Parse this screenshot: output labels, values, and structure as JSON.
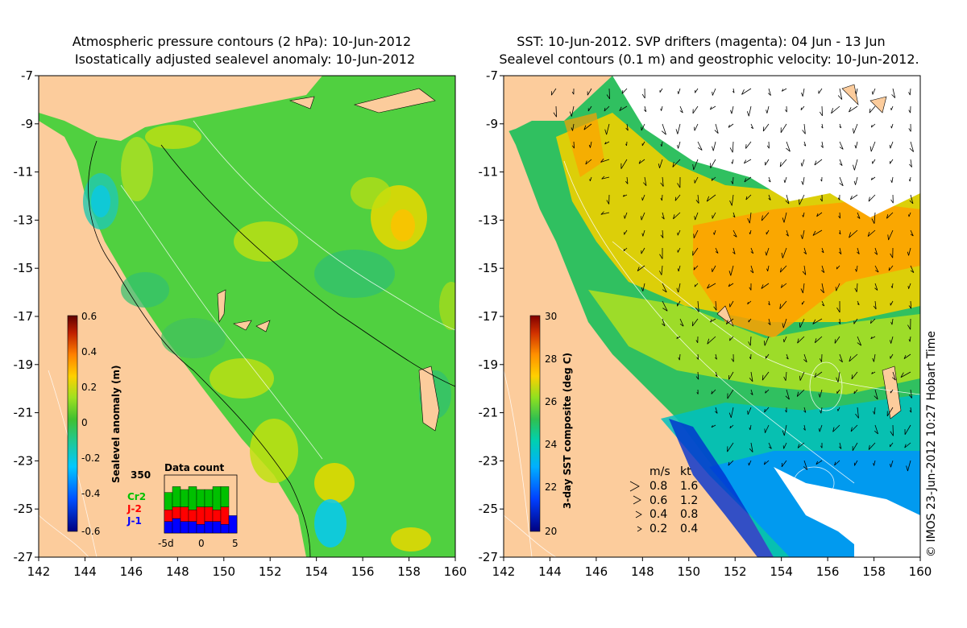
{
  "left_panel": {
    "title_line1": "Atmospheric pressure contours (2 hPa): 10-Jun-2012",
    "title_line2": "Isostatically adjusted sealevel anomaly: 10-Jun-2012",
    "colorbar": {
      "label": "Sealevel anomaly (m)",
      "ticks": [
        "0.6",
        "0.4",
        "0.2",
        "0",
        "-0.2",
        "-0.4",
        "-0.6"
      ],
      "colors": [
        "#000080",
        "#0040ff",
        "#00c0ff",
        "#20d0a0",
        "#40c040",
        "#80e030",
        "#d0e000",
        "#ffc000",
        "#ff8000",
        "#e04000",
        "#a00000",
        "#600000"
      ]
    },
    "data_count": {
      "title": "Data count",
      "max_label": "350",
      "x_ticks": [
        "-5d",
        "0",
        "5"
      ],
      "series": [
        {
          "name": "Cr2",
          "color": "#00c000"
        },
        {
          "name": "J-2",
          "color": "#ff0000"
        },
        {
          "name": "J-1",
          "color": "#0000ff"
        }
      ],
      "days": [
        {
          "j1": 0.2,
          "j2": 0.2,
          "cr2": 0.3
        },
        {
          "j1": 0.25,
          "j2": 0.2,
          "cr2": 0.35
        },
        {
          "j1": 0.2,
          "j2": 0.25,
          "cr2": 0.3
        },
        {
          "j1": 0.2,
          "j2": 0.2,
          "cr2": 0.4
        },
        {
          "j1": 0.15,
          "j2": 0.3,
          "cr2": 0.3
        },
        {
          "j1": 0.2,
          "j2": 0.25,
          "cr2": 0.3
        },
        {
          "j1": 0.2,
          "j2": 0.2,
          "cr2": 0.4
        },
        {
          "j1": 0.15,
          "j2": 0.3,
          "cr2": 0.35
        },
        {
          "j1": 0.3,
          "j2": 0.0,
          "cr2": 0.0
        }
      ]
    }
  },
  "right_panel": {
    "title_line1": "SST: 10-Jun-2012. SVP drifters (magenta): 04 Jun - 13 Jun",
    "title_line2": "Sealevel contours (0.1 m) and geostrophic velocity: 10-Jun-2012.",
    "colorbar": {
      "label": "3-day SST composite (deg C)",
      "ticks": [
        "30",
        "28",
        "26",
        "24",
        "22",
        "20"
      ],
      "colors": [
        "#000080",
        "#0040ff",
        "#00a0ff",
        "#00d0c0",
        "#20c060",
        "#60d030",
        "#b0e000",
        "#ffd000",
        "#ffa000",
        "#ff6000",
        "#d02000",
        "#800000"
      ]
    },
    "velocity_legend": {
      "header_ms": "m/s",
      "header_kt": "kt",
      "rows": [
        {
          "ms": "0.8",
          "kt": "1.6"
        },
        {
          "ms": "0.6",
          "kt": "1.2"
        },
        {
          "ms": "0.4",
          "kt": "0.8"
        },
        {
          "ms": "0.2",
          "kt": "0.4"
        }
      ]
    }
  },
  "axes": {
    "lon_ticks": [
      "142",
      "144",
      "146",
      "148",
      "150",
      "152",
      "154",
      "156",
      "158",
      "160"
    ],
    "lat_ticks": [
      "-7",
      "-9",
      "-11",
      "-13",
      "-15",
      "-17",
      "-19",
      "-21",
      "-23",
      "-25",
      "-27"
    ]
  },
  "credit": "© IMOS 23-Jun-2012 10:27 Hobart Time",
  "colors": {
    "land": "#fccc9c",
    "ocean_left": "#50d040",
    "ocean_right": "#30c060",
    "cloud": "#ffffff"
  }
}
